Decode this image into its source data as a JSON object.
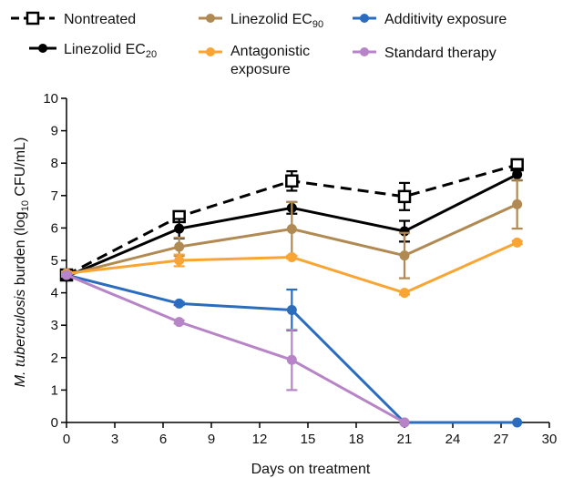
{
  "chart_data": {
    "type": "line",
    "xlabel": "Days on treatment",
    "ylabel": {
      "italic": "M. tuberculosis",
      "main": " burden  (log",
      "sub": "10",
      "tail": " CFU/mL)"
    },
    "xlim": [
      0,
      30
    ],
    "ylim": [
      0,
      10
    ],
    "xticks": [
      "0",
      "3",
      "6",
      "9",
      "12",
      "15",
      "18",
      "21",
      "24",
      "27",
      "30"
    ],
    "yticks": [
      "0",
      "1",
      "2",
      "3",
      "4",
      "5",
      "6",
      "7",
      "8",
      "9",
      "10"
    ],
    "grid": false,
    "legend_position": "top",
    "legend_labels": {
      "nontreated": "Nontreated",
      "ec20_main": "Linezolid EC",
      "ec20_sub": "20",
      "ec90_main": "Linezolid EC",
      "ec90_sub": "90",
      "antagonistic_line1": "Antagonistic",
      "antagonistic_line2": "exposure",
      "additivity": "Additivity exposure",
      "standard": "Standard therapy"
    },
    "series": [
      {
        "key": "nontreated",
        "color": "#000000",
        "dashed": true,
        "marker": "open-square",
        "x": [
          0,
          7,
          14,
          21,
          28
        ],
        "y": [
          4.55,
          6.35,
          7.45,
          6.97,
          7.95
        ],
        "err": [
          0.05,
          0.12,
          0.3,
          0.42,
          0.12
        ]
      },
      {
        "key": "ec20",
        "color": "#000000",
        "dashed": false,
        "marker": "circle",
        "x": [
          0,
          7,
          14,
          21,
          28
        ],
        "y": [
          4.5,
          5.98,
          6.62,
          5.9,
          7.65
        ],
        "err": [
          0.05,
          0.3,
          0.18,
          0.32,
          0.18
        ]
      },
      {
        "key": "ec90",
        "color": "#b08a52",
        "dashed": false,
        "marker": "circle",
        "x": [
          0,
          7,
          14,
          21,
          28
        ],
        "y": [
          4.55,
          5.42,
          5.97,
          5.15,
          6.73
        ],
        "err": [
          0.05,
          0.28,
          0.83,
          0.7,
          0.75
        ]
      },
      {
        "key": "antagonistic",
        "color": "#f8a534",
        "dashed": false,
        "marker": "circle",
        "x": [
          0,
          7,
          14,
          21,
          28
        ],
        "y": [
          4.6,
          5.0,
          5.1,
          4.0,
          5.55
        ],
        "err": [
          0.05,
          0.18,
          0.05,
          0.05,
          0.05
        ]
      },
      {
        "key": "additivity",
        "color": "#2b6cbf",
        "dashed": false,
        "marker": "circle",
        "x": [
          0,
          7,
          14,
          21,
          28
        ],
        "y": [
          4.55,
          3.67,
          3.47,
          0,
          0
        ],
        "err": [
          0.05,
          0.05,
          0.63,
          0,
          0
        ]
      },
      {
        "key": "standard",
        "color": "#b784c8",
        "dashed": false,
        "marker": "circle",
        "x": [
          0,
          7,
          14,
          21
        ],
        "y": [
          4.55,
          3.1,
          1.93,
          0
        ],
        "err": [
          0.05,
          0.05,
          0.93,
          0
        ]
      }
    ]
  }
}
